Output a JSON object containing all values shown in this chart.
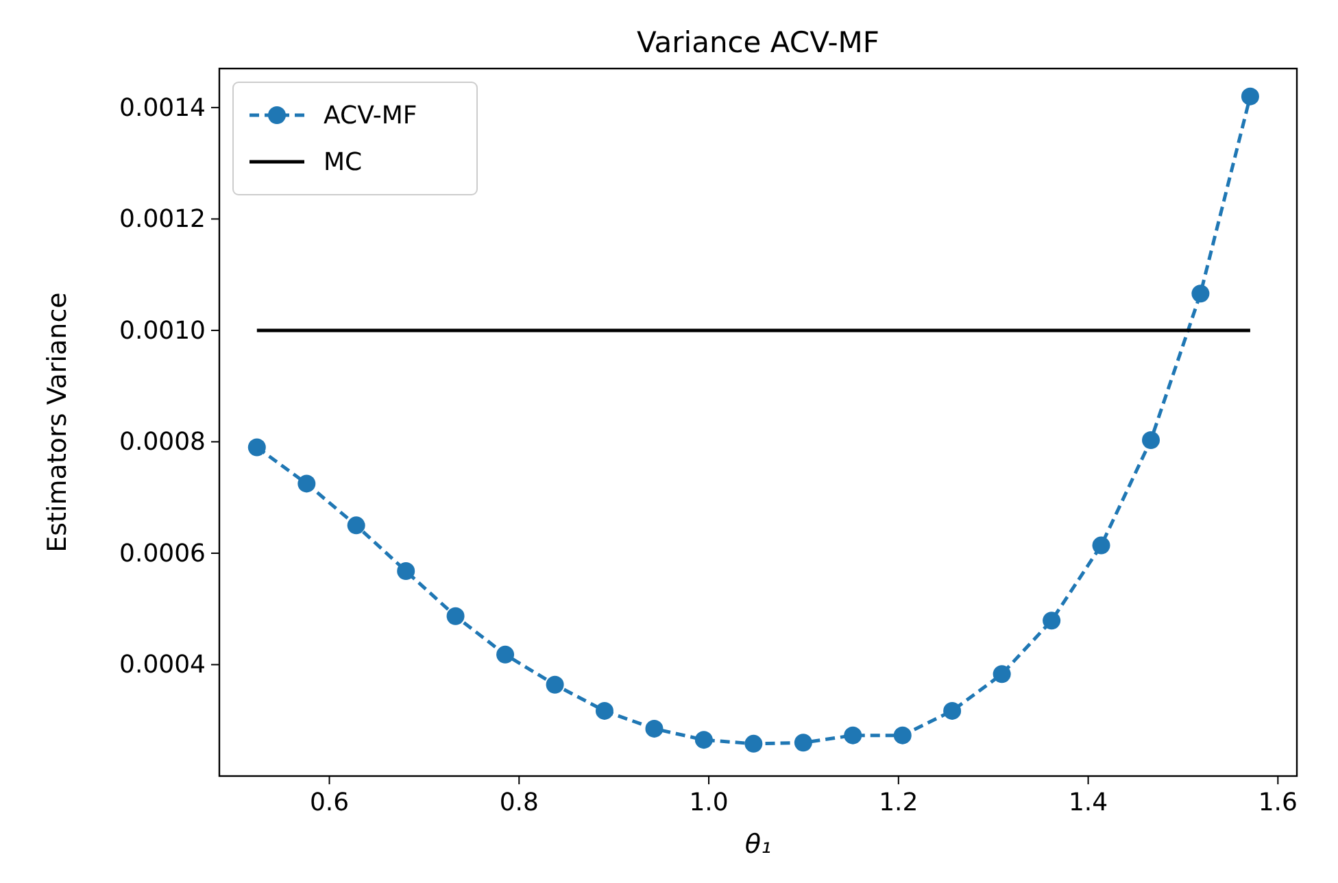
{
  "chart_data": {
    "type": "line",
    "title": "Variance ACV-MF",
    "xlabel": "θ₁",
    "ylabel": "Estimators Variance",
    "xlim": [
      0.484,
      1.62
    ],
    "ylim": [
      0.0002,
      0.00147
    ],
    "xticks": [
      {
        "value": 0.6,
        "label": "0.6"
      },
      {
        "value": 0.8,
        "label": "0.8"
      },
      {
        "value": 1.0,
        "label": "1.0"
      },
      {
        "value": 1.2,
        "label": "1.2"
      },
      {
        "value": 1.4,
        "label": "1.4"
      },
      {
        "value": 1.6,
        "label": "1.6"
      }
    ],
    "yticks": [
      {
        "value": 0.0004,
        "label": "0.0004"
      },
      {
        "value": 0.0006,
        "label": "0.0006"
      },
      {
        "value": 0.0008,
        "label": "0.0008"
      },
      {
        "value": 0.001,
        "label": "0.0010"
      },
      {
        "value": 0.0012,
        "label": "0.0012"
      },
      {
        "value": 0.0014,
        "label": "0.0014"
      }
    ],
    "grid": false,
    "legend": "top left",
    "series": [
      {
        "name": "ACV-MF",
        "color": "#1f77b4",
        "marker": "circle",
        "line_style": "dashed",
        "x": [
          0.5236,
          0.576,
          0.6283,
          0.6807,
          0.733,
          0.7854,
          0.8378,
          0.8901,
          0.9425,
          0.9948,
          1.0472,
          1.0996,
          1.1519,
          1.2043,
          1.2566,
          1.309,
          1.3614,
          1.4137,
          1.4661,
          1.5184,
          1.5708
        ],
        "values": [
          0.00079,
          0.000725,
          0.00065,
          0.000568,
          0.000487,
          0.000418,
          0.000364,
          0.000317,
          0.000285,
          0.000265,
          0.000258,
          0.00026,
          0.000273,
          0.000273,
          0.000317,
          0.000383,
          0.000479,
          0.000614,
          0.000803,
          0.001066,
          0.00142
        ]
      },
      {
        "name": "MC",
        "color": "#000000",
        "marker": "none",
        "line_style": "solid",
        "x": [
          0.5236,
          1.5708
        ],
        "values": [
          0.001,
          0.001
        ]
      }
    ]
  }
}
